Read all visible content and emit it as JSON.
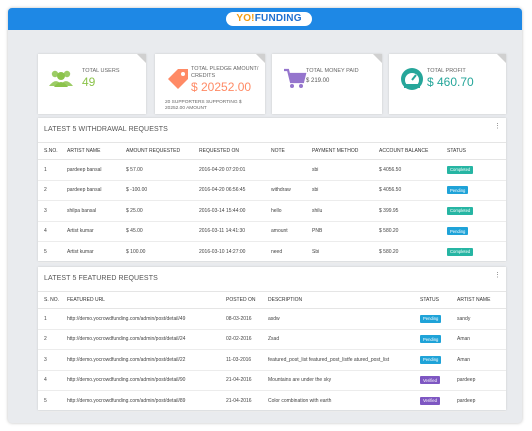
{
  "header": {
    "logo_yo": "YO!",
    "logo_funding": "FUNDING"
  },
  "stats": [
    {
      "label": "TOTAL USERS",
      "value": "49",
      "icon": "users-icon",
      "color": "#9ccc65"
    },
    {
      "label": "TOTAL PLEDGE AMOUNT/ CREDITS",
      "value": "$ 20252.00",
      "note": "20 SUPPORTERS SUPPORTING $ 20252.00 AMOUNT",
      "icon": "tag-icon",
      "color": "#ff8a65"
    },
    {
      "label": "TOTAL MONEY PAID",
      "value": "$ 219.00",
      "icon": "cart-icon",
      "color": "#9575cd"
    },
    {
      "label": "TOTAL PROFIT",
      "value": "$ 460.70",
      "icon": "speedometer-icon",
      "color": "#26a69a"
    }
  ],
  "withdrawals": {
    "title": "LATEST 5 WITHDRAWAL REQUESTS",
    "columns": [
      "S.NO.",
      "ARTIST NAME",
      "AMOUNT REQUESTED",
      "REQUESTED ON",
      "NOTE",
      "PAYMENT METHOD",
      "ACCOUNT BALANCE",
      "STATUS"
    ],
    "rows": [
      {
        "sno": "1",
        "artist": "pardeep bansal",
        "amount": "$ 57.00",
        "on": "2016-04-20 07:20:01",
        "note": "",
        "method": "sbi",
        "balance": "$ 4056.50",
        "status": "Completed"
      },
      {
        "sno": "2",
        "artist": "pardeep bansal",
        "amount": "$ -100.00",
        "on": "2016-04-20 06:56:45",
        "note": "withdraw",
        "method": "sbi",
        "balance": "$ 4056.50",
        "status": "Pending"
      },
      {
        "sno": "3",
        "artist": "shilpa bansal",
        "amount": "$ 25.00",
        "on": "2016-03-14 15:44:00",
        "note": "hello",
        "method": "shilu",
        "balance": "$ 399.95",
        "status": "Completed"
      },
      {
        "sno": "4",
        "artist": "Artist kumar",
        "amount": "$ 45.00",
        "on": "2016-03-11 14:41:30",
        "note": "amount",
        "method": "PNB",
        "balance": "$ 580.20",
        "status": "Pending"
      },
      {
        "sno": "5",
        "artist": "Artist kumar",
        "amount": "$ 100.00",
        "on": "2016-03-10 14:27:00",
        "note": "need",
        "method": "Sbi",
        "balance": "$ 580.20",
        "status": "Completed"
      }
    ]
  },
  "featured": {
    "title": "LATEST 5 FEATURED REQUESTS",
    "columns": [
      "S. NO.",
      "FEATURED URL",
      "POSTED ON",
      "DESCRIPTION",
      "STATUS",
      "ARTIST NAME"
    ],
    "rows": [
      {
        "sno": "1",
        "url": "http://demo.yocrowdfunding.com/admin/post/detail/49",
        "posted": "08-03-2016",
        "desc": "asdw",
        "status": "Pending",
        "artist": "sandy"
      },
      {
        "sno": "2",
        "url": "http://demo.yocrowdfunding.com/admin/post/detail/24",
        "posted": "02-02-2016",
        "desc": "Zsad",
        "status": "Pending",
        "artist": "Aman"
      },
      {
        "sno": "3",
        "url": "http://demo.yocrowdfunding.com/admin/post/detail/22",
        "posted": "11-03-2016",
        "desc": "featured_post_list featured_post_listfe atured_post_list",
        "status": "Pending",
        "artist": "Aman"
      },
      {
        "sno": "4",
        "url": "http://demo.yocrowdfunding.com/admin/post/detail/90",
        "posted": "21-04-2016",
        "desc": "Mountains are under the sky",
        "status": "Verified",
        "artist": "pardeep"
      },
      {
        "sno": "5",
        "url": "http://demo.yocrowdfunding.com/admin/post/detail/89",
        "posted": "21-04-2016",
        "desc": "Color combination with earth",
        "status": "Verified",
        "artist": "pardeep"
      }
    ]
  },
  "status_colors": {
    "Completed": "#26b5a3",
    "Pending": "#1fa3d8",
    "Verified": "#7e57c2"
  }
}
